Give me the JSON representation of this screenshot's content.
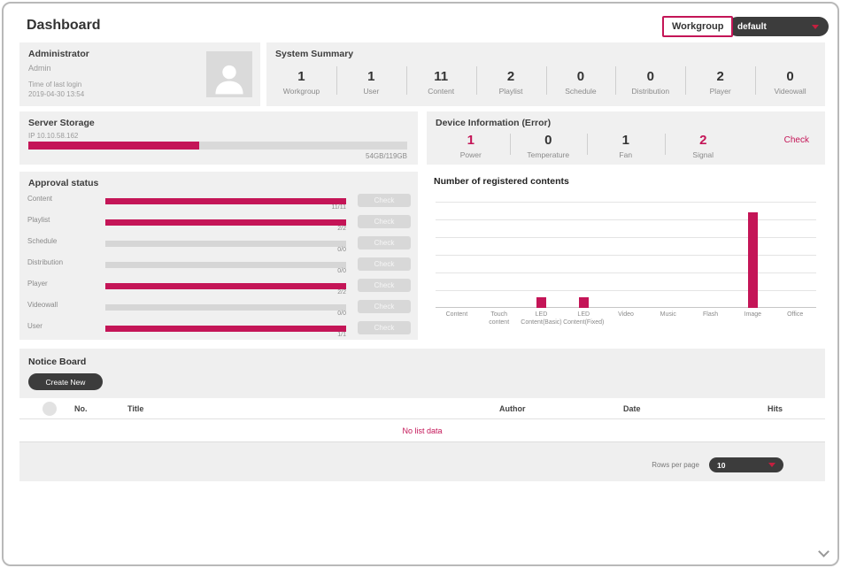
{
  "colors": {
    "accent": "#c41557",
    "dark_button": "#3c3c3c",
    "panel_bg": "#f0f0f0"
  },
  "header": {
    "title": "Dashboard",
    "workgroup_label": "Workgroup",
    "workgroup_selected": "default"
  },
  "admin": {
    "title": "Administrator",
    "name": "Admin",
    "last_login_label": "Time of last login",
    "last_login_value": "2019-04-30 13:54"
  },
  "system_summary": {
    "title": "System Summary",
    "stats": [
      {
        "value": "1",
        "label": "Workgroup"
      },
      {
        "value": "1",
        "label": "User"
      },
      {
        "value": "11",
        "label": "Content"
      },
      {
        "value": "2",
        "label": "Playlist"
      },
      {
        "value": "0",
        "label": "Schedule"
      },
      {
        "value": "0",
        "label": "Distribution"
      },
      {
        "value": "2",
        "label": "Player"
      },
      {
        "value": "0",
        "label": "Videowall"
      }
    ]
  },
  "server_storage": {
    "title": "Server Storage",
    "ip": "IP 10.10.58.162",
    "usage": "54GB/119GB",
    "used_percent": 45
  },
  "device_info": {
    "title": "Device Information (Error)",
    "check_label": "Check",
    "stats": [
      {
        "value": "1",
        "label": "Power",
        "alert": true
      },
      {
        "value": "0",
        "label": "Temperature",
        "alert": false
      },
      {
        "value": "1",
        "label": "Fan",
        "alert": false
      },
      {
        "value": "2",
        "label": "Signal",
        "alert": true
      }
    ]
  },
  "approval": {
    "title": "Approval status",
    "check_label": "Check",
    "rows": [
      {
        "label": "Content",
        "value": "11/11",
        "percent": 100
      },
      {
        "label": "Playlist",
        "value": "2/2",
        "percent": 100
      },
      {
        "label": "Schedule",
        "value": "0/0",
        "percent": 0
      },
      {
        "label": "Distribution",
        "value": "0/0",
        "percent": 0
      },
      {
        "label": "Player",
        "value": "2/2",
        "percent": 100
      },
      {
        "label": "Videowall",
        "value": "0/0",
        "percent": 0
      },
      {
        "label": "User",
        "value": "1/1",
        "percent": 100
      }
    ]
  },
  "chart_data": {
    "type": "bar",
    "title": "Number of registered contents",
    "categories": [
      "Content",
      "Touch\ncontent",
      "LED\nContent(Basic)",
      "LED\nContent(Fixed)",
      "Video",
      "Music",
      "Flash",
      "Image",
      "Office"
    ],
    "values": [
      0,
      0,
      1,
      1,
      0,
      0,
      0,
      9,
      0
    ],
    "ylim": [
      0,
      10
    ],
    "grid": true,
    "bar_color": "#c41557",
    "legend": "none"
  },
  "notice_board": {
    "title": "Notice Board",
    "create_label": "Create New",
    "columns": [
      "No.",
      "Title",
      "Author",
      "Date",
      "Hits"
    ],
    "empty_text": "No list data",
    "rows_per_page_label": "Rows per page",
    "rows_per_page_value": "10"
  }
}
